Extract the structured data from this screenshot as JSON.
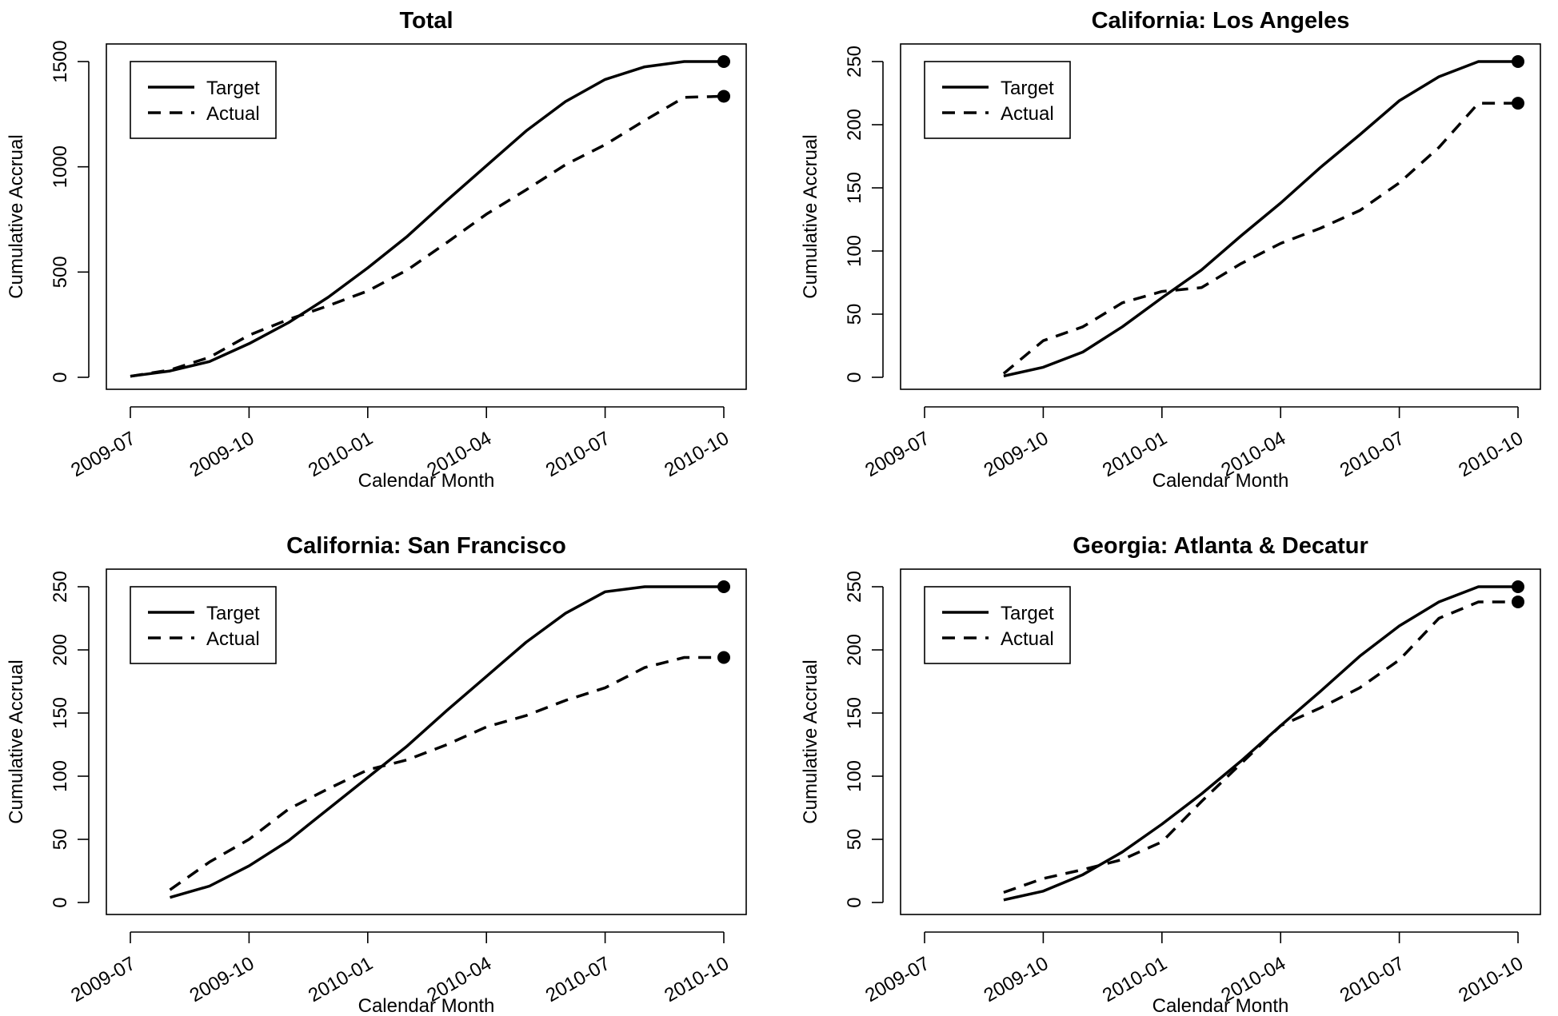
{
  "chart_data": [
    {
      "type": "line",
      "title": "Total",
      "xlabel": "Calendar Month",
      "ylabel": "Cumulative Accrual",
      "xlim": [
        "2009-07",
        "2010-10"
      ],
      "ylim": [
        0,
        1500
      ],
      "x_ticks": [
        "2009-07",
        "2009-10",
        "2010-01",
        "2010-04",
        "2010-07",
        "2010-10"
      ],
      "y_ticks": [
        0,
        500,
        1000,
        1500
      ],
      "legend": {
        "position": "top-left",
        "entries": [
          "Target",
          "Actual"
        ]
      },
      "grid": false,
      "series": [
        {
          "name": "Target",
          "style": "solid",
          "x": [
            "2009-07",
            "2009-08",
            "2009-09",
            "2009-10",
            "2009-11",
            "2009-12",
            "2010-01",
            "2010-02",
            "2010-03",
            "2010-04",
            "2010-05",
            "2010-06",
            "2010-07",
            "2010-08",
            "2010-09",
            "2010-10"
          ],
          "values": [
            5,
            30,
            75,
            160,
            260,
            380,
            520,
            670,
            840,
            1005,
            1170,
            1310,
            1415,
            1475,
            1500,
            1500
          ]
        },
        {
          "name": "Actual",
          "style": "dashed",
          "x": [
            "2009-07",
            "2009-08",
            "2009-09",
            "2009-10",
            "2009-11",
            "2009-12",
            "2010-01",
            "2010-02",
            "2010-03",
            "2010-04",
            "2010-05",
            "2010-06",
            "2010-07",
            "2010-08",
            "2010-09",
            "2010-10"
          ],
          "values": [
            5,
            35,
            95,
            200,
            275,
            340,
            410,
            510,
            640,
            775,
            890,
            1010,
            1105,
            1220,
            1330,
            1335
          ]
        }
      ]
    },
    {
      "type": "line",
      "title": "California: Los Angeles",
      "xlabel": "Calendar Month",
      "ylabel": "Cumulative Accrual",
      "xlim": [
        "2009-07",
        "2010-10"
      ],
      "ylim": [
        0,
        250
      ],
      "x_ticks": [
        "2009-07",
        "2009-10",
        "2010-01",
        "2010-04",
        "2010-07",
        "2010-10"
      ],
      "y_ticks": [
        0,
        50,
        100,
        150,
        200,
        250
      ],
      "legend": {
        "position": "top-left",
        "entries": [
          "Target",
          "Actual"
        ]
      },
      "grid": false,
      "series": [
        {
          "name": "Target",
          "style": "solid",
          "x": [
            "2009-09",
            "2009-10",
            "2009-11",
            "2009-12",
            "2010-01",
            "2010-02",
            "2010-03",
            "2010-04",
            "2010-05",
            "2010-06",
            "2010-07",
            "2010-08",
            "2010-09",
            "2010-10"
          ],
          "values": [
            1,
            8,
            20,
            40,
            63,
            85,
            112,
            138,
            166,
            192,
            219,
            238,
            250,
            250
          ]
        },
        {
          "name": "Actual",
          "style": "dashed",
          "x": [
            "2009-09",
            "2009-10",
            "2009-11",
            "2009-12",
            "2010-01",
            "2010-02",
            "2010-03",
            "2010-04",
            "2010-05",
            "2010-06",
            "2010-07",
            "2010-08",
            "2010-09",
            "2010-10"
          ],
          "values": [
            3,
            29,
            40,
            59,
            68,
            71,
            90,
            106,
            118,
            132,
            154,
            182,
            217,
            217
          ]
        }
      ]
    },
    {
      "type": "line",
      "title": "California: San Francisco",
      "xlabel": "Calendar Month",
      "ylabel": "Cumulative Accrual",
      "xlim": [
        "2009-07",
        "2010-10"
      ],
      "ylim": [
        0,
        250
      ],
      "x_ticks": [
        "2009-07",
        "2009-10",
        "2010-01",
        "2010-04",
        "2010-07",
        "2010-10"
      ],
      "y_ticks": [
        0,
        50,
        100,
        150,
        200,
        250
      ],
      "legend": {
        "position": "top-left",
        "entries": [
          "Target",
          "Actual"
        ]
      },
      "grid": false,
      "series": [
        {
          "name": "Target",
          "style": "solid",
          "x": [
            "2009-08",
            "2009-09",
            "2009-10",
            "2009-11",
            "2009-12",
            "2010-01",
            "2010-02",
            "2010-03",
            "2010-04",
            "2010-05",
            "2010-06",
            "2010-07",
            "2010-08",
            "2010-09",
            "2010-10"
          ],
          "values": [
            4,
            13,
            29,
            49,
            74,
            99,
            124,
            152,
            179,
            206,
            229,
            246,
            250,
            250,
            250
          ]
        },
        {
          "name": "Actual",
          "style": "dashed",
          "x": [
            "2009-08",
            "2009-09",
            "2009-10",
            "2009-11",
            "2009-12",
            "2010-01",
            "2010-02",
            "2010-03",
            "2010-04",
            "2010-05",
            "2010-06",
            "2010-07",
            "2010-08",
            "2010-09",
            "2010-10"
          ],
          "values": [
            10,
            32,
            50,
            74,
            90,
            105,
            113,
            125,
            139,
            148,
            160,
            170,
            186,
            194,
            194
          ]
        }
      ]
    },
    {
      "type": "line",
      "title": "Georgia: Atlanta & Decatur",
      "xlabel": "Calendar Month",
      "ylabel": "Cumulative Accrual",
      "xlim": [
        "2009-07",
        "2010-10"
      ],
      "ylim": [
        0,
        250
      ],
      "x_ticks": [
        "2009-07",
        "2009-10",
        "2010-01",
        "2010-04",
        "2010-07",
        "2010-10"
      ],
      "y_ticks": [
        0,
        50,
        100,
        150,
        200,
        250
      ],
      "legend": {
        "position": "top-left",
        "entries": [
          "Target",
          "Actual"
        ]
      },
      "grid": false,
      "series": [
        {
          "name": "Target",
          "style": "solid",
          "x": [
            "2009-09",
            "2009-10",
            "2009-11",
            "2009-12",
            "2010-01",
            "2010-02",
            "2010-03",
            "2010-04",
            "2010-05",
            "2010-06",
            "2010-07",
            "2010-08",
            "2010-09",
            "2010-10"
          ],
          "values": [
            2,
            9,
            22,
            40,
            62,
            86,
            112,
            140,
            167,
            195,
            219,
            238,
            250,
            250
          ]
        },
        {
          "name": "Actual",
          "style": "dashed",
          "x": [
            "2009-09",
            "2009-10",
            "2009-11",
            "2009-12",
            "2010-01",
            "2010-02",
            "2010-03",
            "2010-04",
            "2010-05",
            "2010-06",
            "2010-07",
            "2010-08",
            "2010-09",
            "2010-10"
          ],
          "values": [
            8,
            19,
            26,
            34,
            48,
            80,
            110,
            140,
            154,
            170,
            192,
            225,
            238,
            238
          ]
        }
      ]
    }
  ]
}
